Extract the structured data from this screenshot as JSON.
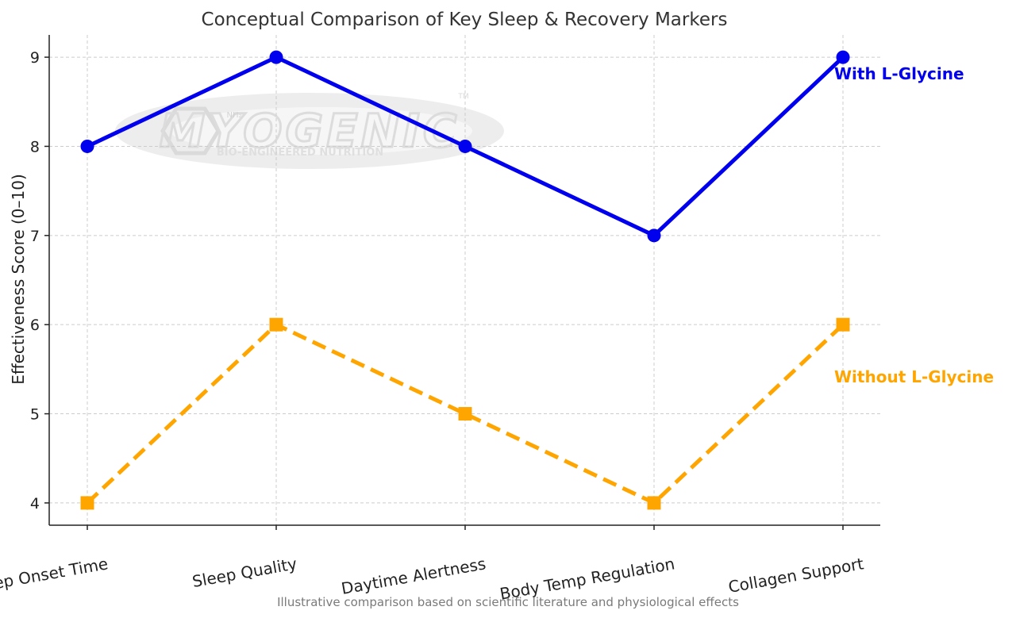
{
  "chart_data": {
    "type": "line",
    "title": "Conceptual Comparison of Key Sleep & Recovery Markers",
    "ylabel": "Effectiveness Score (0–10)",
    "xlabel": "",
    "footnote": "Illustrative comparison based on scientific literature and physiological effects",
    "categories": [
      "Sleep Onset Time",
      "Sleep Quality",
      "Daytime Alertness",
      "Body Temp Regulation",
      "Collagen Support"
    ],
    "ylim": [
      3.75,
      9.25
    ],
    "yticks": [
      4,
      5,
      6,
      7,
      8,
      9
    ],
    "grid": true,
    "series": [
      {
        "name": "With L-Glycine",
        "values": [
          8,
          9,
          8,
          7,
          9
        ],
        "color": "#0000ee",
        "marker": "circle",
        "linestyle": "solid"
      },
      {
        "name": "Without L-Glycine",
        "values": [
          4,
          6,
          5,
          4,
          6
        ],
        "color": "#ffa500",
        "marker": "square",
        "linestyle": "dashed"
      }
    ],
    "watermark": {
      "brand": "MYOGENIC",
      "tagline": "BIO-ENGINEERED NUTRITION",
      "sup": "NH₂",
      "tm": "TM"
    }
  }
}
